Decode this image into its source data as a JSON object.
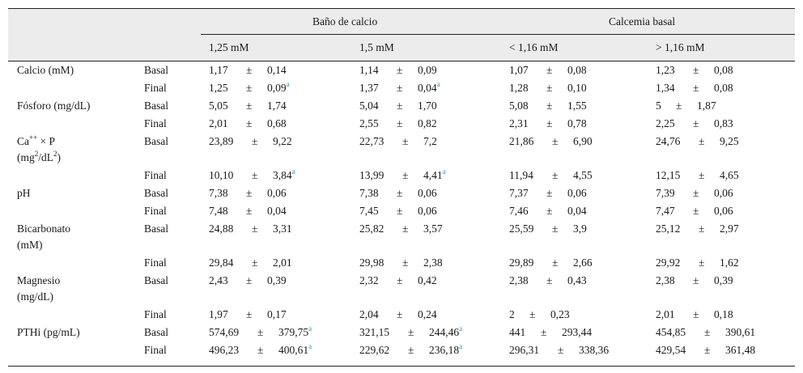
{
  "header": {
    "groups": [
      "Baño de calcio",
      "Calcemia basal"
    ],
    "columns": [
      "1,25 mM",
      "1,5 mM",
      "< 1,16 mM",
      "> 1,16 mM"
    ]
  },
  "pm": "±",
  "footnote_mark": "a",
  "rows": [
    {
      "param": "Calcio (mM)",
      "sub": "Basal",
      "cells": [
        [
          "1,17",
          "0,14",
          ""
        ],
        [
          "1,14",
          "0,09",
          ""
        ],
        [
          "1,07",
          "0,08",
          ""
        ],
        [
          "1,23",
          "0,08",
          ""
        ]
      ]
    },
    {
      "param": "",
      "sub": "Final",
      "cells": [
        [
          "1,25",
          "0,09",
          "a"
        ],
        [
          "1,37",
          "0,04",
          "a"
        ],
        [
          "1,28",
          "0,10",
          ""
        ],
        [
          "1,34",
          "0,08",
          ""
        ]
      ]
    },
    {
      "param": "Fósforo (mg/dL)",
      "sub": "Basal",
      "cells": [
        [
          "5,05",
          "1,74",
          ""
        ],
        [
          "5,04",
          "1,70",
          ""
        ],
        [
          "5,08",
          "1,55",
          ""
        ],
        [
          "5",
          "1,87",
          ""
        ]
      ]
    },
    {
      "param": "",
      "sub": "Final",
      "cells": [
        [
          "2,01",
          "0,68",
          ""
        ],
        [
          "2,55",
          "0,82",
          ""
        ],
        [
          "2,31",
          "0,78",
          ""
        ],
        [
          "2,25",
          "0,83",
          ""
        ]
      ]
    },
    {
      "param": "Ca++ × P (mg2/dL2)",
      "sub": "Basal",
      "cells": [
        [
          "23,89",
          "9,22",
          ""
        ],
        [
          "22,73",
          "7,2",
          ""
        ],
        [
          "21,86",
          "6,90",
          ""
        ],
        [
          "24,76",
          "9,25",
          ""
        ]
      ]
    },
    {
      "param": "",
      "sub": "Final",
      "cells": [
        [
          "10,10",
          "3,84",
          "a"
        ],
        [
          "13,99",
          "4,41",
          "a"
        ],
        [
          "11,94",
          "4,55",
          ""
        ],
        [
          "12,15",
          "4,65",
          ""
        ]
      ]
    },
    {
      "param": "pH",
      "sub": "Basal",
      "cells": [
        [
          "7,38",
          "0,06",
          ""
        ],
        [
          "7,38",
          "0,06",
          ""
        ],
        [
          "7,37",
          "0,06",
          ""
        ],
        [
          "7,39",
          "0,06",
          ""
        ]
      ]
    },
    {
      "param": "",
      "sub": "Final",
      "cells": [
        [
          "7,48",
          "0,04",
          ""
        ],
        [
          "7,45",
          "0,06",
          ""
        ],
        [
          "7,46",
          "0,04",
          ""
        ],
        [
          "7,47",
          "0,06",
          ""
        ]
      ]
    },
    {
      "param": "Bicarbonato (mM)",
      "sub": "Basal",
      "cells": [
        [
          "24,88",
          "3,31",
          ""
        ],
        [
          "25,82",
          "3,57",
          ""
        ],
        [
          "25,59",
          "3,9",
          ""
        ],
        [
          "25,12",
          "2,97",
          ""
        ]
      ]
    },
    {
      "param": "",
      "sub": "Final",
      "cells": [
        [
          "29,84",
          "2,01",
          ""
        ],
        [
          "29,98",
          "2,38",
          ""
        ],
        [
          "29,89",
          "2,66",
          ""
        ],
        [
          "29,92",
          "1,62",
          ""
        ]
      ]
    },
    {
      "param": "Magnesio (mg/dL)",
      "sub": "Basal",
      "cells": [
        [
          "2,43",
          "0,39",
          ""
        ],
        [
          "2,32",
          "0,42",
          ""
        ],
        [
          "2,38",
          "0,43",
          ""
        ],
        [
          "2,38",
          "0,39",
          ""
        ]
      ]
    },
    {
      "param": "",
      "sub": "Final",
      "cells": [
        [
          "1,97",
          "0,17",
          ""
        ],
        [
          "2,04",
          "0,24",
          ""
        ],
        [
          "2",
          "0,23",
          ""
        ],
        [
          "2,01",
          "0,18",
          ""
        ]
      ]
    },
    {
      "param": "PTHi (pg/mL)",
      "sub": "Basal",
      "cells": [
        [
          "574,69",
          "379,75",
          "a"
        ],
        [
          "321,15",
          "244,46",
          "a"
        ],
        [
          "441",
          "293,44",
          ""
        ],
        [
          "454,85",
          "390,61",
          ""
        ]
      ]
    },
    {
      "param": "",
      "sub": "Final",
      "cells": [
        [
          "496,23",
          "400,61",
          "a"
        ],
        [
          "229,62",
          "236,18",
          "a"
        ],
        [
          "296,31",
          "338,36",
          ""
        ],
        [
          "429,54",
          "361,48",
          ""
        ]
      ]
    }
  ]
}
